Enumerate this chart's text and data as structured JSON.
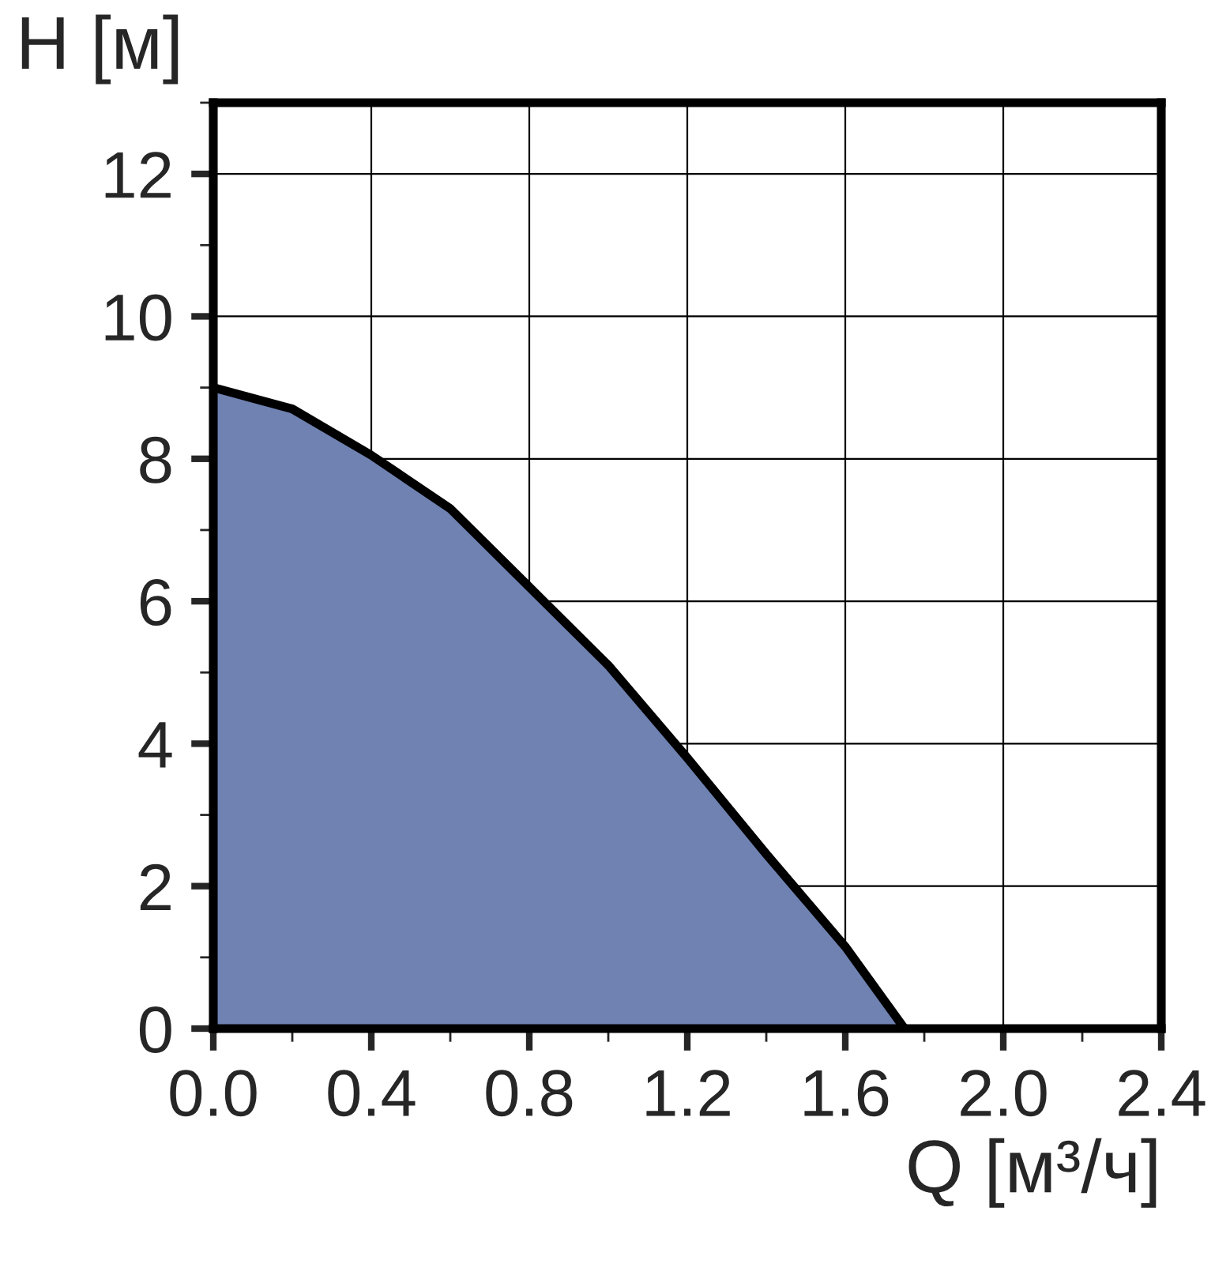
{
  "chart_data": {
    "type": "area",
    "xlabel": "Q [м³/ч]",
    "ylabel": "H [м]",
    "x": [
      0,
      0.2,
      0.4,
      0.6,
      0.8,
      1.0,
      1.2,
      1.4,
      1.6,
      1.75
    ],
    "series": [
      {
        "color": "#6f82b2",
        "values": [
          9.0,
          8.7,
          8.05,
          7.3,
          6.2,
          5.1,
          3.8,
          2.45,
          1.15,
          0
        ]
      }
    ],
    "xlim": [
      0,
      2.4
    ],
    "xticks": [
      {
        "value": 0,
        "label": "0.0"
      },
      {
        "value": 0.2,
        "label": null
      },
      {
        "value": 0.4,
        "label": "0.4"
      },
      {
        "value": 0.6,
        "label": null
      },
      {
        "value": 0.8,
        "label": "0.8"
      },
      {
        "value": 1.0,
        "label": null
      },
      {
        "value": 1.2,
        "label": "1.2"
      },
      {
        "value": 1.4,
        "label": null
      },
      {
        "value": 1.6,
        "label": "1.6"
      },
      {
        "value": 1.8,
        "label": null
      },
      {
        "value": 2.0,
        "label": "2.0"
      },
      {
        "value": 2.2,
        "label": null
      },
      {
        "value": 2.4,
        "label": "2.4"
      }
    ],
    "ylim": [
      0,
      13
    ],
    "yticks": [
      0,
      {
        "value": 1,
        "label": null
      },
      2,
      {
        "value": 3,
        "label": null
      },
      4,
      {
        "value": 5,
        "label": null
      },
      6,
      {
        "value": 7,
        "label": null
      },
      8,
      {
        "value": 9,
        "label": null
      },
      10,
      {
        "value": 11,
        "label": null
      },
      12,
      {
        "value": 13,
        "label": null
      }
    ],
    "grid": true
  }
}
